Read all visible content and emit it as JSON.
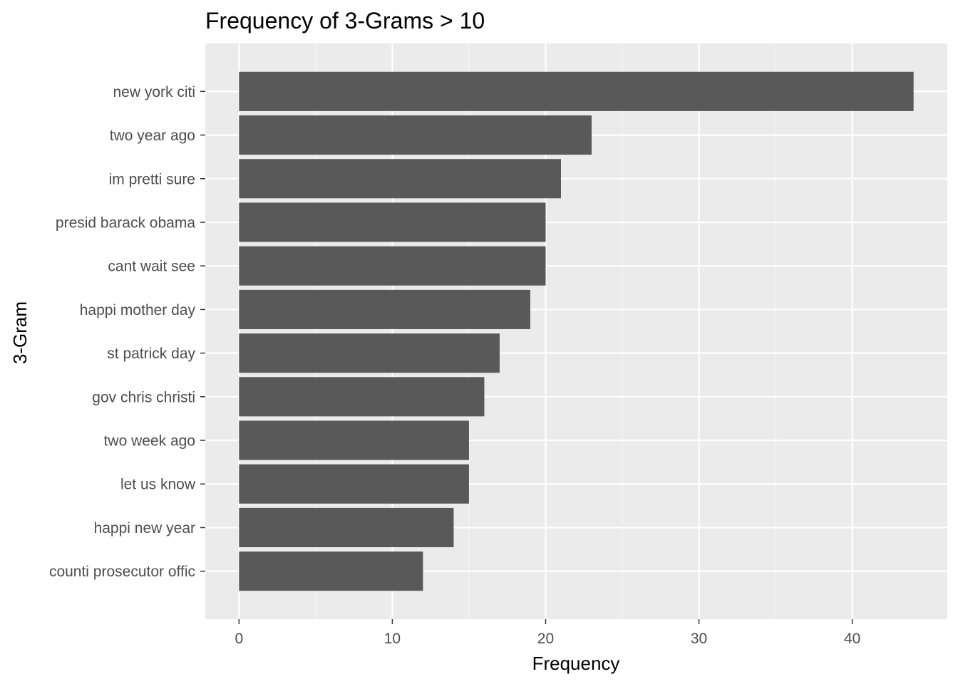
{
  "chart_data": {
    "type": "bar",
    "orientation": "horizontal",
    "title": "Frequency of 3-Grams > 10",
    "xlabel": "Frequency",
    "ylabel": "3-Gram",
    "categories": [
      "new york citi",
      "two year ago",
      "im pretti sure",
      "presid barack obama",
      "cant wait see",
      "happi mother day",
      "st patrick day",
      "gov chris christi",
      "two week ago",
      "let us know",
      "happi new year",
      "counti prosecutor offic"
    ],
    "values": [
      44,
      23,
      21,
      20,
      20,
      19,
      17,
      16,
      15,
      15,
      14,
      12
    ],
    "xlim": [
      -2.2,
      46.2
    ],
    "xticks": [
      0,
      10,
      20,
      30,
      40
    ],
    "grid": true,
    "legend": "none",
    "colors": {
      "bar": "#595959",
      "panel": "#ebebeb",
      "grid_major": "#ffffff",
      "grid_minor": "#f5f5f5",
      "tick_label": "#4d4d4d",
      "tick": "#333333"
    }
  }
}
